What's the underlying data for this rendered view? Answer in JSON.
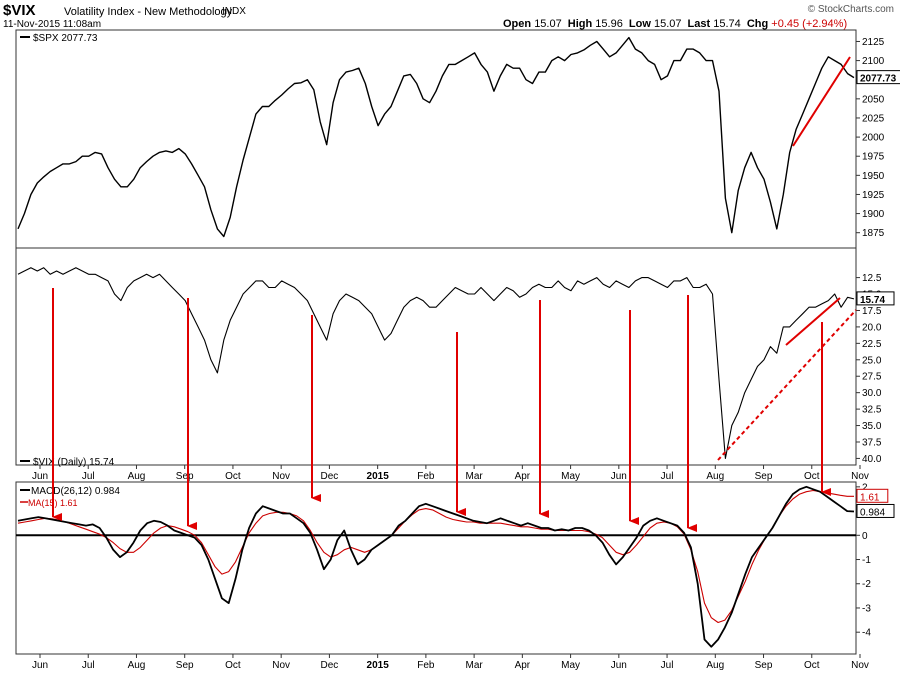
{
  "header": {
    "ticker": "$VIX",
    "subtitle": "Volatility Index - New Methodology",
    "exchange": "INDX",
    "datetime": "11-Nov-2015 11:08am",
    "watermark": "© StockCharts.com",
    "open_label": "Open",
    "open": "15.07",
    "high_label": "High",
    "high": "15.96",
    "low_label": "Low",
    "low": "15.07",
    "last_label": "Last",
    "last": "15.74",
    "chg_label": "Chg",
    "chg": "+0.45 (+2.94%)"
  },
  "colors": {
    "price": "#000000",
    "signal": "#cc0000",
    "annotation": "#e00000",
    "background": "#ffffff",
    "border": "#333333"
  },
  "x_axis": {
    "months": [
      "Jun",
      "Jul",
      "Aug",
      "Sep",
      "Oct",
      "Nov",
      "Dec",
      "2015",
      "Feb",
      "Mar",
      "Apr",
      "May",
      "Jun",
      "Jul",
      "Aug",
      "Sep",
      "Oct",
      "Nov"
    ]
  },
  "chart_data": [
    {
      "type": "line",
      "legend": "$SPX 2077.73",
      "last_value": "2077.73",
      "y_ticks": [
        1875,
        1900,
        1925,
        1950,
        1975,
        2000,
        2025,
        2050,
        2075,
        2100,
        2125
      ],
      "ylim": [
        1855,
        2140
      ],
      "series": [
        {
          "name": "$SPX",
          "values": [
            1880,
            1900,
            1925,
            1940,
            1948,
            1955,
            1960,
            1965,
            1965,
            1968,
            1975,
            1975,
            1980,
            1978,
            1960,
            1945,
            1935,
            1935,
            1945,
            1960,
            1968,
            1975,
            1980,
            1982,
            1980,
            1985,
            1978,
            1965,
            1950,
            1935,
            1905,
            1880,
            1870,
            1895,
            1935,
            1970,
            2000,
            2030,
            2040,
            2040,
            2048,
            2055,
            2063,
            2070,
            2071,
            2075,
            2062,
            2020,
            1990,
            2045,
            2075,
            2085,
            2087,
            2090,
            2070,
            2040,
            2015,
            2030,
            2040,
            2060,
            2080,
            2082,
            2070,
            2050,
            2045,
            2060,
            2080,
            2095,
            2095,
            2100,
            2105,
            2110,
            2095,
            2085,
            2060,
            2080,
            2095,
            2090,
            2090,
            2075,
            2070,
            2085,
            2085,
            2100,
            2105,
            2100,
            2108,
            2110,
            2114,
            2120,
            2125,
            2115,
            2105,
            2110,
            2120,
            2130,
            2115,
            2110,
            2100,
            2095,
            2075,
            2080,
            2100,
            2100,
            2115,
            2115,
            2110,
            2100,
            2100,
            2060,
            1920,
            1875,
            1930,
            1960,
            1980,
            1960,
            1945,
            1915,
            1880,
            1925,
            1980,
            2010,
            2030,
            2050,
            2070,
            2090,
            2105,
            2100,
            2095,
            2083,
            2077.73
          ]
        }
      ]
    },
    {
      "type": "line",
      "legend": "$VIX (Daily) 15.74",
      "last_value": "15.74",
      "y_ticks": [
        12.5,
        15.0,
        17.5,
        20.0,
        22.5,
        25.0,
        27.5,
        30.0,
        32.5,
        35.0,
        37.5,
        40.0
      ],
      "y_tick_labels": [
        "12.5",
        "15.0",
        "17.5",
        "20.0",
        "22.5",
        "25.0",
        "27.5",
        "30.0",
        "32.5",
        "35.0",
        "37.5",
        "40.0"
      ],
      "inverted": true,
      "ylim": [
        41,
        8
      ],
      "series": [
        {
          "name": "$VIX",
          "values": [
            12,
            11.5,
            11,
            11.5,
            11,
            12,
            11.5,
            12,
            11.5,
            11,
            11.5,
            12,
            12,
            12.5,
            13,
            15,
            16,
            14,
            13,
            12.5,
            12,
            12.5,
            12,
            13,
            14,
            15,
            16,
            18,
            20,
            22,
            25,
            27,
            22,
            19,
            17,
            15,
            14,
            13,
            13,
            14,
            14,
            13,
            13.5,
            14,
            15,
            16,
            18,
            20,
            22,
            18,
            16,
            15,
            15.5,
            16,
            17,
            18,
            20,
            22,
            21,
            19,
            17,
            16,
            15.5,
            16,
            17,
            17,
            16,
            15,
            14,
            14.5,
            15,
            15,
            14,
            15,
            16,
            15,
            14,
            14.5,
            15.5,
            15,
            14,
            13.5,
            14,
            14,
            13,
            14,
            14.5,
            13,
            13.5,
            13,
            12.5,
            13.5,
            14,
            13,
            13.5,
            14,
            13,
            12.5,
            12.5,
            13,
            13.5,
            14,
            13,
            13,
            12.5,
            14,
            14,
            13.5,
            15,
            28,
            40,
            35,
            33,
            30,
            28,
            26,
            25,
            23,
            24,
            20,
            20,
            19,
            18,
            17,
            17,
            16.5,
            16,
            15,
            17,
            15.5,
            15.74
          ]
        }
      ]
    },
    {
      "type": "line",
      "y_ticks": [
        2,
        1,
        0,
        -1,
        -2,
        -3,
        -4
      ],
      "y_tick_labels": [
        "2",
        "1",
        "0",
        "-1",
        "-2",
        "-3",
        "-4"
      ],
      "ylim": [
        -4.9,
        2.2
      ],
      "series": [
        {
          "name": "MACD(26,12)",
          "legend": "MACD(26,12) 0.984",
          "last_value": "0.984",
          "values": [
            0.6,
            0.65,
            0.7,
            0.75,
            0.7,
            0.65,
            0.6,
            0.55,
            0.5,
            0.45,
            0.4,
            0.45,
            0.3,
            -0.1,
            -0.6,
            -0.9,
            -0.7,
            -0.3,
            0.2,
            0.5,
            0.6,
            0.55,
            0.4,
            0.2,
            0.1,
            0.0,
            -0.1,
            -0.4,
            -1.0,
            -1.8,
            -2.6,
            -2.8,
            -1.8,
            -0.6,
            0.3,
            0.9,
            1.2,
            1.1,
            1.0,
            0.9,
            0.9,
            0.7,
            0.5,
            0.1,
            -0.6,
            -1.4,
            -1.0,
            -0.2,
            0.2,
            -0.6,
            -1.2,
            -1.0,
            -0.6,
            -0.4,
            -0.2,
            0.0,
            0.4,
            0.6,
            0.9,
            1.2,
            1.3,
            1.2,
            1.1,
            1.0,
            0.9,
            0.8,
            0.7,
            0.6,
            0.55,
            0.5,
            0.6,
            0.7,
            0.6,
            0.5,
            0.4,
            0.5,
            0.4,
            0.3,
            0.3,
            0.2,
            0.25,
            0.2,
            0.3,
            0.3,
            0.2,
            0.0,
            -0.3,
            -0.8,
            -1.2,
            -0.9,
            -0.5,
            -0.1,
            0.4,
            0.6,
            0.7,
            0.6,
            0.5,
            0.4,
            0.1,
            -0.5,
            -2.0,
            -4.3,
            -4.6,
            -4.3,
            -3.8,
            -3.2,
            -2.4,
            -1.6,
            -0.9,
            -0.5,
            -0.1,
            0.3,
            0.8,
            1.3,
            1.7,
            1.9,
            2.0,
            1.9,
            1.8,
            1.6,
            1.4,
            1.2,
            1.0,
            0.984
          ]
        },
        {
          "name": "MA(15)",
          "legend": "MA(15) 1.61",
          "last_value": "1.61",
          "values": [
            0.5,
            0.55,
            0.6,
            0.65,
            0.7,
            0.68,
            0.63,
            0.55,
            0.45,
            0.35,
            0.25,
            0.15,
            0.05,
            -0.1,
            -0.3,
            -0.55,
            -0.7,
            -0.7,
            -0.5,
            -0.2,
            0.1,
            0.3,
            0.4,
            0.35,
            0.25,
            0.15,
            0.0,
            -0.3,
            -0.8,
            -1.3,
            -1.6,
            -1.5,
            -1.1,
            -0.5,
            0.1,
            0.5,
            0.8,
            0.9,
            0.95,
            0.95,
            0.9,
            0.8,
            0.6,
            0.2,
            -0.3,
            -0.7,
            -0.9,
            -0.8,
            -0.6,
            -0.5,
            -0.6,
            -0.7,
            -0.6,
            -0.4,
            -0.2,
            0.0,
            0.3,
            0.6,
            0.85,
            1.05,
            1.1,
            1.05,
            0.9,
            0.75,
            0.65,
            0.6,
            0.55,
            0.55,
            0.5,
            0.5,
            0.5,
            0.5,
            0.45,
            0.4,
            0.35,
            0.35,
            0.3,
            0.25,
            0.25,
            0.2,
            0.2,
            0.2,
            0.2,
            0.2,
            0.15,
            0.05,
            -0.1,
            -0.4,
            -0.7,
            -0.8,
            -0.7,
            -0.4,
            -0.05,
            0.3,
            0.5,
            0.55,
            0.5,
            0.35,
            0.05,
            -0.6,
            -1.5,
            -2.8,
            -3.4,
            -3.6,
            -3.5,
            -3.1,
            -2.5,
            -1.9,
            -1.2,
            -0.6,
            -0.1,
            0.3,
            0.8,
            1.2,
            1.5,
            1.7,
            1.8,
            1.85,
            1.8,
            1.75,
            1.7,
            1.65,
            1.61,
            1.61
          ]
        }
      ]
    }
  ]
}
